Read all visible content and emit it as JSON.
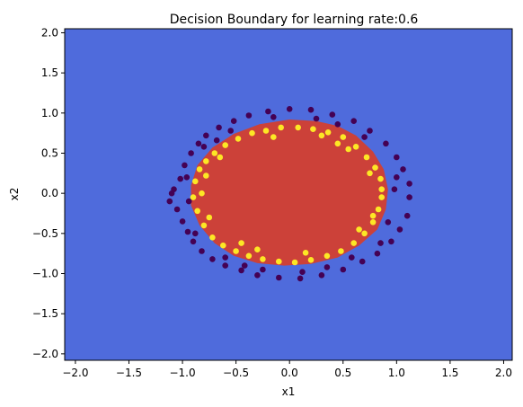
{
  "chart_data": {
    "type": "scatter",
    "title": "Decision Boundary for learning rate:0.6",
    "xlabel": "x1",
    "ylabel": "x2",
    "xlim": [
      -2.1,
      2.08
    ],
    "ylim": [
      -2.08,
      2.05
    ],
    "xticks": [
      "−2.0",
      "−1.5",
      "−1.0",
      "−0.5",
      "0.0",
      "0.5",
      "1.0",
      "1.5",
      "2.0"
    ],
    "yticks": [
      "−2.0",
      "−1.5",
      "−1.0",
      "−0.5",
      "0.0",
      "0.5",
      "1.0",
      "1.5",
      "2.0"
    ],
    "grid": false,
    "colors": {
      "background_region": "#4f6bdc",
      "inner_region": "#cc4139",
      "class_outer": "#440154",
      "class_inner": "#fde725"
    },
    "decision_region": {
      "inner_label": 1,
      "polygon": [
        [
          0.0,
          0.92
        ],
        [
          0.25,
          0.9
        ],
        [
          0.45,
          0.84
        ],
        [
          0.62,
          0.72
        ],
        [
          0.78,
          0.52
        ],
        [
          0.88,
          0.3
        ],
        [
          0.92,
          0.05
        ],
        [
          0.9,
          -0.2
        ],
        [
          0.82,
          -0.45
        ],
        [
          0.65,
          -0.65
        ],
        [
          0.45,
          -0.8
        ],
        [
          0.2,
          -0.88
        ],
        [
          -0.05,
          -0.9
        ],
        [
          -0.3,
          -0.87
        ],
        [
          -0.52,
          -0.78
        ],
        [
          -0.7,
          -0.62
        ],
        [
          -0.84,
          -0.4
        ],
        [
          -0.92,
          -0.15
        ],
        [
          -0.92,
          0.1
        ],
        [
          -0.86,
          0.35
        ],
        [
          -0.72,
          0.57
        ],
        [
          -0.52,
          0.74
        ],
        [
          -0.28,
          0.86
        ]
      ]
    },
    "series": [
      {
        "class": 0,
        "points": [
          [
            -1.12,
            -0.1
          ],
          [
            -1.08,
            0.05
          ],
          [
            -1.05,
            -0.2
          ],
          [
            -1.02,
            0.18
          ],
          [
            -1.0,
            -0.35
          ],
          [
            -0.98,
            0.35
          ],
          [
            -0.95,
            -0.48
          ],
          [
            -0.92,
            0.5
          ],
          [
            -0.9,
            -0.6
          ],
          [
            -0.85,
            0.62
          ],
          [
            -0.82,
            -0.72
          ],
          [
            -0.78,
            0.72
          ],
          [
            -0.72,
            -0.82
          ],
          [
            -0.66,
            0.82
          ],
          [
            -0.6,
            -0.9
          ],
          [
            -0.52,
            0.9
          ],
          [
            -0.45,
            -0.96
          ],
          [
            -0.38,
            0.97
          ],
          [
            -0.3,
            -1.02
          ],
          [
            -0.2,
            1.02
          ],
          [
            -0.1,
            -1.05
          ],
          [
            0.0,
            1.05
          ],
          [
            0.1,
            -1.06
          ],
          [
            0.2,
            1.04
          ],
          [
            0.3,
            -1.02
          ],
          [
            0.4,
            0.98
          ],
          [
            0.5,
            -0.95
          ],
          [
            0.6,
            0.9
          ],
          [
            0.68,
            -0.85
          ],
          [
            0.75,
            0.78
          ],
          [
            0.82,
            -0.75
          ],
          [
            0.9,
            0.62
          ],
          [
            0.95,
            -0.6
          ],
          [
            1.0,
            0.45
          ],
          [
            1.03,
            -0.45
          ],
          [
            1.06,
            0.3
          ],
          [
            1.1,
            -0.28
          ],
          [
            1.12,
            0.12
          ],
          [
            1.12,
            -0.05
          ],
          [
            -1.1,
            0.0
          ],
          [
            -0.96,
            0.2
          ],
          [
            -0.94,
            -0.1
          ],
          [
            0.98,
            0.05
          ],
          [
            -0.68,
            0.66
          ],
          [
            0.7,
            0.7
          ],
          [
            -0.6,
            -0.8
          ],
          [
            0.58,
            -0.8
          ],
          [
            -0.25,
            -0.95
          ],
          [
            0.25,
            0.93
          ],
          [
            -0.15,
            0.95
          ],
          [
            0.12,
            -0.98
          ],
          [
            0.85,
            -0.62
          ],
          [
            -0.8,
            0.58
          ],
          [
            -0.55,
            0.78
          ],
          [
            0.45,
            0.86
          ],
          [
            0.92,
            -0.36
          ],
          [
            -0.88,
            -0.5
          ],
          [
            0.35,
            -0.92
          ],
          [
            -0.42,
            -0.9
          ],
          [
            1.0,
            0.2
          ]
        ]
      },
      {
        "class": 1,
        "points": [
          [
            -0.9,
            -0.05
          ],
          [
            -0.88,
            0.15
          ],
          [
            -0.86,
            -0.22
          ],
          [
            -0.84,
            0.3
          ],
          [
            -0.8,
            -0.4
          ],
          [
            -0.78,
            0.4
          ],
          [
            -0.72,
            -0.55
          ],
          [
            -0.7,
            0.5
          ],
          [
            -0.62,
            -0.65
          ],
          [
            -0.6,
            0.6
          ],
          [
            -0.5,
            -0.72
          ],
          [
            -0.48,
            0.68
          ],
          [
            -0.38,
            -0.78
          ],
          [
            -0.35,
            0.75
          ],
          [
            -0.25,
            -0.82
          ],
          [
            -0.22,
            0.78
          ],
          [
            -0.1,
            -0.85
          ],
          [
            -0.08,
            0.82
          ],
          [
            0.05,
            -0.86
          ],
          [
            0.08,
            0.82
          ],
          [
            0.2,
            -0.83
          ],
          [
            0.22,
            0.8
          ],
          [
            0.35,
            -0.78
          ],
          [
            0.36,
            0.76
          ],
          [
            0.48,
            -0.72
          ],
          [
            0.5,
            0.7
          ],
          [
            0.6,
            -0.62
          ],
          [
            0.62,
            0.58
          ],
          [
            0.7,
            -0.5
          ],
          [
            0.72,
            0.45
          ],
          [
            0.78,
            -0.36
          ],
          [
            0.8,
            0.32
          ],
          [
            0.83,
            -0.2
          ],
          [
            0.85,
            0.18
          ],
          [
            0.86,
            -0.05
          ],
          [
            0.86,
            0.05
          ],
          [
            -0.82,
            0.0
          ],
          [
            -0.75,
            -0.3
          ],
          [
            0.75,
            0.25
          ],
          [
            -0.65,
            0.45
          ],
          [
            0.65,
            -0.45
          ],
          [
            -0.45,
            -0.62
          ],
          [
            0.45,
            0.62
          ],
          [
            -0.15,
            0.7
          ],
          [
            0.15,
            -0.74
          ],
          [
            0.78,
            -0.28
          ],
          [
            -0.78,
            0.22
          ],
          [
            0.3,
            0.72
          ],
          [
            -0.3,
            -0.7
          ],
          [
            0.55,
            0.55
          ]
        ]
      }
    ]
  }
}
